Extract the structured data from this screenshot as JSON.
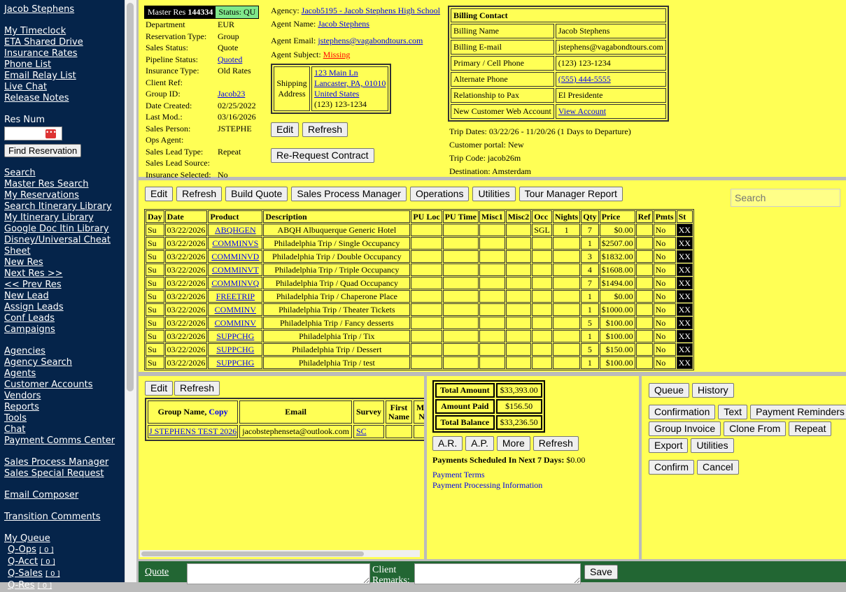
{
  "sidebar": {
    "user": "Jacob Stephens",
    "group1": [
      "My Timeclock",
      "ETA Shared Drive",
      "Insurance Rates",
      "Phone List",
      "Email Relay List",
      "Live Chat",
      "Release Notes"
    ],
    "res_num_label": "Res Num",
    "res_num_value": "",
    "find_button": "Find Reservation",
    "group2": [
      "Search",
      "Master Res Search",
      "My Reservations",
      "Search Itinerary Library",
      "My Itinerary Library",
      "Google Doc Itin Library",
      "Disney/Universal Cheat",
      "Sheet",
      "New Res",
      "Next Res >>",
      "<< Prev Res",
      "New Lead",
      "Assign Leads",
      "Conf Leads",
      "Campaigns"
    ],
    "group3": [
      "Agencies",
      "Agency Search",
      "Agents",
      "Customer Accounts",
      "Vendors",
      "Reports",
      "Tools",
      "Chat",
      "Payment Comms Center"
    ],
    "group4": [
      "Sales Process Manager",
      "Sales Special Request"
    ],
    "group5": [
      "Email Composer"
    ],
    "group6": [
      "Transition Comments"
    ],
    "queue_label": "My Queue",
    "queues": [
      {
        "label": "Q-Ops",
        "count": "[ 0 ]"
      },
      {
        "label": "Q-Acct",
        "count": "[ 0 ]"
      },
      {
        "label": "Q-Sales",
        "count": "[ 0 ]"
      },
      {
        "label": "Q-Res",
        "count": "[ 0 ]"
      }
    ]
  },
  "header": {
    "master_res_label": "Master Res",
    "master_res_num": "144334",
    "status": "Status: QU",
    "fields": [
      [
        "Department",
        "EUR"
      ],
      [
        "Reservation Type:",
        "Group"
      ],
      [
        "Sales Status:",
        "Quote"
      ],
      [
        "Pipeline Status:",
        "Quoted"
      ],
      [
        "Insurance Type:",
        "Old Rates"
      ],
      [
        "Client Ref:",
        ""
      ],
      [
        "Group ID:",
        "Jacob23"
      ],
      [
        "Date Created:",
        "02/25/2022"
      ],
      [
        "Last Mod.:",
        "03/16/2026"
      ],
      [
        "Sales Person:",
        "JSTEPHE"
      ],
      [
        "Ops Agent:",
        ""
      ],
      [
        "Sales Lead Type:",
        "Repeat"
      ],
      [
        "Sales Lead Source:",
        ""
      ],
      [
        "Insurance Selected:",
        "No"
      ]
    ],
    "agency_label": "Agency:",
    "agency": "Jacob5195 - Jacob Stephens High School",
    "agent_name_label": "Agent Name:",
    "agent_name": "Jacob Stephens",
    "agent_email_label": "Agent Email:",
    "agent_email": "jstephens@vagabondtours.com",
    "agent_subject_label": "Agent Subject:",
    "agent_subject": "Missing",
    "shipping_label": "Shipping Address",
    "shipping": [
      "123 Main Ln",
      "Lancaster, PA, 01010",
      "United States",
      "(123) 123-1234"
    ],
    "edit": "Edit",
    "refresh": "Refresh",
    "rerequest": "Re-Request Contract",
    "billing_title": "Billing Contact",
    "billing": [
      [
        "Billing Name",
        "Jacob Stephens"
      ],
      [
        "Billing E-mail",
        "jstephens@vagabondtours.com"
      ],
      [
        "Primary / Cell Phone",
        "(123) 123-1234"
      ],
      [
        "Alternate Phone",
        "(555) 444-5555"
      ],
      [
        "Relationship to Pax",
        "El Presidente"
      ],
      [
        "New Customer Web Account",
        "View Account"
      ]
    ],
    "trip_dates": "Trip Dates: 03/22/26 - 11/20/26 (1 Days to Departure)",
    "portal": "Customer portal: New",
    "trip_code": "Trip Code: jacob26m",
    "destination": "Destination: Amsterdam"
  },
  "items": {
    "toolbar": [
      "Edit",
      "Refresh",
      "Build Quote",
      "Sales Process Manager",
      "Operations",
      "Utilities",
      "Tour Manager Report"
    ],
    "search_placeholder": "Search",
    "columns": [
      "Day",
      "Date",
      "Product",
      "Description",
      "PU Loc",
      "PU Time",
      "Misc1",
      "Misc2",
      "Occ",
      "Nights",
      "Qty",
      "Price",
      "Ref",
      "Pmts",
      "St"
    ],
    "rows": [
      [
        "Su",
        "03/22/2026",
        "ABQHGEN",
        "ABQH Albuquerque Generic Hotel",
        "",
        "",
        "",
        "",
        "SGL",
        "1",
        "7",
        "$0.00",
        "",
        "No",
        "XX"
      ],
      [
        "Su",
        "03/22/2026",
        "COMMINVS",
        "Philadelphia Trip / Single Occupancy",
        "",
        "",
        "",
        "",
        "",
        "",
        "1",
        "$2507.00",
        "",
        "No",
        "XX"
      ],
      [
        "Su",
        "03/22/2026",
        "COMMINVD",
        "Philadelphia Trip / Double Occupancy",
        "",
        "",
        "",
        "",
        "",
        "",
        "3",
        "$1832.00",
        "",
        "No",
        "XX"
      ],
      [
        "Su",
        "03/22/2026",
        "COMMINVT",
        "Philadelphia Trip / Triple Occupancy",
        "",
        "",
        "",
        "",
        "",
        "",
        "4",
        "$1608.00",
        "",
        "No",
        "XX"
      ],
      [
        "Su",
        "03/22/2026",
        "COMMINVQ",
        "Philadelphia Trip / Quad Occupancy",
        "",
        "",
        "",
        "",
        "",
        "",
        "7",
        "$1494.00",
        "",
        "No",
        "XX"
      ],
      [
        "Su",
        "03/22/2026",
        "FREETRIP",
        "Philadelphia Trip / Chaperone Place",
        "",
        "",
        "",
        "",
        "",
        "",
        "1",
        "$0.00",
        "",
        "No",
        "XX"
      ],
      [
        "Su",
        "03/22/2026",
        "COMMINV",
        "Philadelphia Trip / Theater Tickets",
        "",
        "",
        "",
        "",
        "",
        "",
        "1",
        "$1000.00",
        "",
        "No",
        "XX"
      ],
      [
        "Su",
        "03/22/2026",
        "COMMINV",
        "Philadelphia Trip / Fancy desserts",
        "",
        "",
        "",
        "",
        "",
        "",
        "5",
        "$100.00",
        "",
        "No",
        "XX"
      ],
      [
        "Su",
        "03/22/2026",
        "SUPPCHG",
        "Philadelphia Trip / Tix",
        "",
        "",
        "",
        "",
        "",
        "",
        "1",
        "$100.00",
        "",
        "No",
        "XX"
      ],
      [
        "Su",
        "03/22/2026",
        "SUPPCHG",
        "Philadelphia Trip / Dessert",
        "",
        "",
        "",
        "",
        "",
        "",
        "5",
        "$150.00",
        "",
        "No",
        "XX"
      ],
      [
        "Su",
        "03/22/2026",
        "SUPPCHG",
        "Philadelphia Trip / test",
        "",
        "",
        "",
        "",
        "",
        "",
        "1",
        "$100.00",
        "",
        "No",
        "XX"
      ]
    ]
  },
  "group": {
    "edit": "Edit",
    "refresh": "Refresh",
    "col_group": "Group Name,",
    "copy": "Copy",
    "col_email": "Email",
    "col_survey": "Survey",
    "col_first": "First Name",
    "col_middle": "Middle Name",
    "row": {
      "name": "J STEPHENS TEST 2026",
      "email": "jacobstephenseta@outlook.com",
      "survey": "SC"
    }
  },
  "payments": {
    "totals": [
      [
        "Total Amount",
        "$33,393.00"
      ],
      [
        "Amount Paid",
        "$156.50"
      ],
      [
        "Total Balance",
        "$33,236.50"
      ]
    ],
    "buttons": [
      "A.R.",
      "A.P.",
      "More",
      "Refresh"
    ],
    "scheduled_label": "Payments Scheduled In Next 7 Days:",
    "scheduled_value": "$0.00",
    "terms": "Payment Terms",
    "processing": "Payment Processing Information"
  },
  "actions": {
    "row1": [
      "Queue",
      "History"
    ],
    "row2": [
      "Confirmation",
      "Text",
      "Payment Reminders"
    ],
    "row3": [
      "Group Invoice",
      "Clone From",
      "Repeat"
    ],
    "row4": [
      "Export",
      "Utilities"
    ],
    "row5": [
      "Confirm",
      "Cancel"
    ]
  },
  "footer": {
    "quote": "Quote",
    "client_remarks": "Client Remarks:",
    "save": "Save"
  },
  "colors": {
    "sidebar": "#05244a",
    "panel": "#ffff55",
    "footer": "#226633",
    "status": "#7fe88a"
  }
}
